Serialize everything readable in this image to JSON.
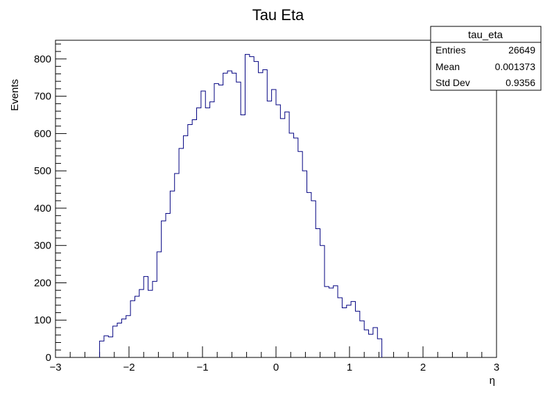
{
  "chart_data": {
    "type": "histogram",
    "title": "Tau Eta",
    "xlabel": "η",
    "ylabel": "Events",
    "xlim": [
      -3,
      3
    ],
    "ylim": [
      0,
      850
    ],
    "xticks": [
      -3,
      -2,
      -1,
      0,
      1,
      2,
      3
    ],
    "xtick_labels": [
      "−3",
      "−2",
      "−1",
      "0",
      "1",
      "2",
      "3"
    ],
    "yticks": [
      0,
      100,
      200,
      300,
      400,
      500,
      600,
      700,
      800
    ],
    "ytick_labels": [
      "0",
      "100",
      "200",
      "300",
      "400",
      "500",
      "600",
      "700",
      "800"
    ],
    "grid": false,
    "line_color": "#000080",
    "bin_width": 0.06,
    "x_first_edge": -2.4,
    "values": [
      44,
      58,
      55,
      84,
      92,
      103,
      112,
      152,
      164,
      182,
      217,
      180,
      204,
      283,
      366,
      386,
      446,
      493,
      560,
      594,
      624,
      637,
      669,
      714,
      669,
      685,
      734,
      730,
      762,
      768,
      762,
      738,
      650,
      812,
      806,
      793,
      763,
      771,
      687,
      718,
      677,
      640,
      658,
      601,
      588,
      552,
      500,
      442,
      420,
      345,
      300,
      190,
      186,
      192,
      160,
      133,
      140,
      150,
      124,
      98,
      74,
      62,
      80,
      50
    ],
    "stats_box": {
      "title": "tau_eta",
      "rows": [
        {
          "label": "Entries",
          "value": "26649"
        },
        {
          "label": "Mean",
          "value": "0.001373"
        },
        {
          "label": "Std Dev",
          "value": "0.9356"
        }
      ]
    }
  }
}
